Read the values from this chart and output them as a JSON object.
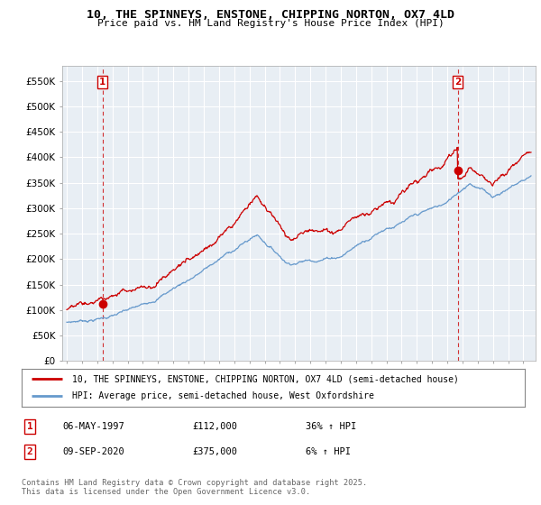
{
  "title1": "10, THE SPINNEYS, ENSTONE, CHIPPING NORTON, OX7 4LD",
  "title2": "Price paid vs. HM Land Registry's House Price Index (HPI)",
  "legend_line1": "10, THE SPINNEYS, ENSTONE, CHIPPING NORTON, OX7 4LD (semi-detached house)",
  "legend_line2": "HPI: Average price, semi-detached house, West Oxfordshire",
  "annotation1_label": "1",
  "annotation1_date": "06-MAY-1997",
  "annotation1_price": "£112,000",
  "annotation1_hpi": "36% ↑ HPI",
  "annotation2_label": "2",
  "annotation2_date": "09-SEP-2020",
  "annotation2_price": "£375,000",
  "annotation2_hpi": "6% ↑ HPI",
  "footer": "Contains HM Land Registry data © Crown copyright and database right 2025.\nThis data is licensed under the Open Government Licence v3.0.",
  "red_color": "#cc0000",
  "blue_color": "#6699cc",
  "bg_color": "#e8eef4",
  "ylim_min": 0,
  "ylim_max": 580000,
  "yticks": [
    0,
    50000,
    100000,
    150000,
    200000,
    250000,
    300000,
    350000,
    400000,
    450000,
    500000,
    550000
  ],
  "ytick_labels": [
    "£0",
    "£50K",
    "£100K",
    "£150K",
    "£200K",
    "£250K",
    "£300K",
    "£350K",
    "£400K",
    "£450K",
    "£500K",
    "£550K"
  ],
  "xmin": 1994.7,
  "xmax": 2025.8,
  "purchase1_x": 1997.35,
  "purchase1_y": 112000,
  "purchase2_x": 2020.69,
  "purchase2_y": 375000,
  "vline1_x": 1997.35,
  "vline2_x": 2020.69
}
